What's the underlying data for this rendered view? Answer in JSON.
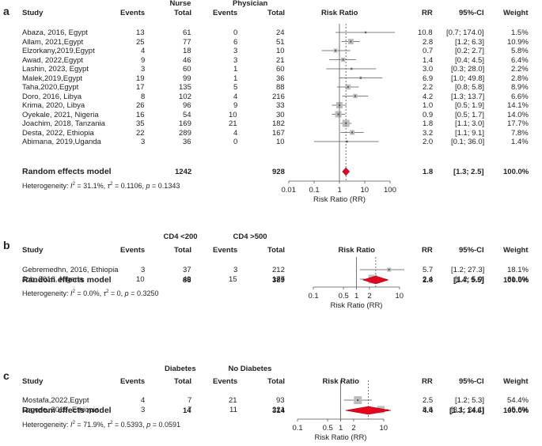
{
  "chart_data": [
    {
      "type": "forest",
      "panel": "a",
      "columns": {
        "study": "Study",
        "group1": "Nurse",
        "group2": "Physician",
        "events": "Events",
        "total": "Total",
        "plot": "Risk Ratio",
        "rr": "RR",
        "ci": "95%-CI",
        "weight": "Weight"
      },
      "studies": [
        {
          "name": "Abaza, 2016, Egypt",
          "e1": "13",
          "t1": "61",
          "e2": "0",
          "t2": "24",
          "rr_text": "10.8",
          "ci_text": "[0.7; 174.0]",
          "w_text": "1.5%",
          "rr": 10.8,
          "lo": 0.7,
          "hi": 174.0,
          "w": 1.5
        },
        {
          "name": "Allam, 2021,Egypt",
          "e1": "25",
          "t1": "77",
          "e2": "6",
          "t2": "51",
          "rr_text": "2.8",
          "ci_text": "[1.2;   6.3]",
          "w_text": "10.9%",
          "rr": 2.8,
          "lo": 1.2,
          "hi": 6.3,
          "w": 10.9
        },
        {
          "name": "Elzorkany,2019,Egypt",
          "e1": "4",
          "t1": "18",
          "e2": "3",
          "t2": "10",
          "rr_text": "0.7",
          "ci_text": "[0.2;   2.7]",
          "w_text": "5.8%",
          "rr": 0.7,
          "lo": 0.2,
          "hi": 2.7,
          "w": 5.8
        },
        {
          "name": "Awad, 2022,Egypt",
          "e1": "9",
          "t1": "46",
          "e2": "3",
          "t2": "21",
          "rr_text": "1.4",
          "ci_text": "[0.4;   4.5]",
          "w_text": "6.4%",
          "rr": 1.4,
          "lo": 0.4,
          "hi": 4.5,
          "w": 6.4
        },
        {
          "name": "Lashin, 2023, Egypt",
          "e1": "3",
          "t1": "60",
          "e2": "1",
          "t2": "60",
          "rr_text": "3.0",
          "ci_text": "[0.3;  28.0]",
          "w_text": "2.2%",
          "rr": 3.0,
          "lo": 0.3,
          "hi": 28.0,
          "w": 2.2
        },
        {
          "name": "Malek,2019,Egypt",
          "e1": "19",
          "t1": "99",
          "e2": "1",
          "t2": "36",
          "rr_text": "6.9",
          "ci_text": "[1.0;  49.8]",
          "w_text": "2.8%",
          "rr": 6.9,
          "lo": 1.0,
          "hi": 49.8,
          "w": 2.8
        },
        {
          "name": "Taha,2020,Egypt",
          "e1": "17",
          "t1": "135",
          "e2": "5",
          "t2": "88",
          "rr_text": "2.2",
          "ci_text": "[0.8;   5.8]",
          "w_text": "8.9%",
          "rr": 2.2,
          "lo": 0.8,
          "hi": 5.8,
          "w": 8.9
        },
        {
          "name": "Doro, 2016, Libya",
          "e1": "8",
          "t1": "102",
          "e2": "4",
          "t2": "216",
          "rr_text": "4.2",
          "ci_text": "[1.3;  13.7]",
          "w_text": "6.6%",
          "rr": 4.2,
          "lo": 1.3,
          "hi": 13.7,
          "w": 6.6
        },
        {
          "name": "Krima, 2020, Libya",
          "e1": "26",
          "t1": "96",
          "e2": "9",
          "t2": "33",
          "rr_text": "1.0",
          "ci_text": "[0.5;   1.9]",
          "w_text": "14.1%",
          "rr": 1.0,
          "lo": 0.5,
          "hi": 1.9,
          "w": 14.1
        },
        {
          "name": "Oyekale, 2021, Nigeria",
          "e1": "16",
          "t1": "54",
          "e2": "10",
          "t2": "30",
          "rr_text": "0.9",
          "ci_text": "[0.5;   1.7]",
          "w_text": "14.0%",
          "rr": 0.9,
          "lo": 0.5,
          "hi": 1.7,
          "w": 14.0
        },
        {
          "name": "Joachim, 2018, Tanzania",
          "e1": "35",
          "t1": "169",
          "e2": "21",
          "t2": "182",
          "rr_text": "1.8",
          "ci_text": "[1.1;   3.0]",
          "w_text": "17.7%",
          "rr": 1.8,
          "lo": 1.1,
          "hi": 3.0,
          "w": 17.7
        },
        {
          "name": "Desta, 2022, Ethiopia",
          "e1": "22",
          "t1": "289",
          "e2": "4",
          "t2": "167",
          "rr_text": "3.2",
          "ci_text": "[1.1;   9.1]",
          "w_text": "7.8%",
          "rr": 3.2,
          "lo": 1.1,
          "hi": 9.1,
          "w": 7.8
        },
        {
          "name": "Abimana, 2019,Uganda",
          "e1": "3",
          "t1": "36",
          "e2": "0",
          "t2": "10",
          "rr_text": "2.0",
          "ci_text": "[0.1;  36.0]",
          "w_text": "1.4%",
          "rr": 2.0,
          "lo": 0.1,
          "hi": 36.0,
          "w": 1.4
        }
      ],
      "pooled": {
        "label": "Random effects model",
        "t1": "1242",
        "t2": "928",
        "rr_text": "1.8",
        "ci_text": "[1.3;   2.5]",
        "w_text": "100.0%",
        "rr": 1.8,
        "lo": 1.3,
        "hi": 2.5
      },
      "heterogeneity": {
        "prefix": "Heterogeneity: ",
        "i2": "I",
        "i2_rest": " = 31.1%, ",
        "tau": "τ",
        "tau_rest": " = 0.1106, ",
        "p": "p",
        "p_rest": " = 0.1343"
      },
      "axis": {
        "ticks": [
          0.01,
          0.1,
          1,
          10,
          100
        ],
        "tick_labels": [
          "0.01",
          "0.1",
          "1",
          "10",
          "100"
        ],
        "xlabel": "Risk Ratio (RR)",
        "log": true,
        "range": [
          0.01,
          100
        ]
      }
    },
    {
      "type": "forest",
      "panel": "b",
      "columns": {
        "study": "Study",
        "group1": "CD4 <200",
        "group2": "CD4 >500",
        "events": "Events",
        "total": "Total",
        "plot": "Risk Ratio",
        "rr": "RR",
        "ci": "95%-CI",
        "weight": "Weight"
      },
      "studies": [
        {
          "name": "Gebremedhn, 2016, Ethiopia",
          "e1": "3",
          "t1": "37",
          "e2": "3",
          "t2": "212",
          "rr_text": "5.7",
          "ci_text": "[1.2; 27.3]",
          "w_text": "18.1%",
          "rr": 5.7,
          "lo": 1.2,
          "hi": 27.3,
          "w": 18.1
        },
        {
          "name": "Job, 2018, Nigeria",
          "e1": "10",
          "t1": "49",
          "e2": "15",
          "t2": "177",
          "rr_text": "2.4",
          "ci_text": "[1.2;  5.0]",
          "w_text": "81.9%",
          "rr": 2.4,
          "lo": 1.2,
          "hi": 5.0,
          "w": 81.9
        }
      ],
      "pooled": {
        "label": "Random effects model",
        "t1": "86",
        "t2": "389",
        "rr_text": "2.8",
        "ci_text": "[1.4;  5.5]",
        "w_text": "100.0%",
        "rr": 2.8,
        "lo": 1.4,
        "hi": 5.5
      },
      "heterogeneity": {
        "prefix": "Heterogeneity: ",
        "i2": "I",
        "i2_rest": " = 0.0%, ",
        "tau": "τ",
        "tau_rest": " = 0, ",
        "p": "p",
        "p_rest": " = 0.3250"
      },
      "axis": {
        "ticks": [
          0.1,
          0.5,
          1,
          2,
          10
        ],
        "tick_labels": [
          "0.1",
          "0.5",
          "1",
          "2",
          "10"
        ],
        "xlabel": "Risk Ratio (RR)",
        "log": true,
        "range": [
          0.1,
          10
        ]
      }
    },
    {
      "type": "forest",
      "panel": "c",
      "columns": {
        "study": "Study",
        "group1": "Diabetes",
        "group2": "No Diabetes",
        "events": "Events",
        "total": "Total",
        "plot": "Risk Ratio",
        "rr": "RR",
        "ci": "95%-CI",
        "weight": "Weight"
      },
      "studies": [
        {
          "name": "Mostafa,2022,Egypt",
          "e1": "4",
          "t1": "7",
          "e2": "21",
          "t2": "93",
          "rr_text": "2.5",
          "ci_text": "[1.2;  5.3]",
          "w_text": "54.4%",
          "rr": 2.5,
          "lo": 1.2,
          "hi": 5.3,
          "w": 54.4
        },
        {
          "name": "Legese, 2018, Ethiopia",
          "e1": "3",
          "t1": "7",
          "e2": "11",
          "t2": "221",
          "rr_text": "8.6",
          "ci_text": "[3.1; 24.1]",
          "w_text": "45.6%",
          "rr": 8.6,
          "lo": 3.1,
          "hi": 24.1,
          "w": 45.6
        }
      ],
      "pooled": {
        "label": "Random effects model",
        "t1": "14",
        "t2": "314",
        "rr_text": "4.4",
        "ci_text": "[1.3; 14.6]",
        "w_text": "100.0%",
        "rr": 4.4,
        "lo": 1.3,
        "hi": 14.6
      },
      "heterogeneity": {
        "prefix": "Heterogeneity: ",
        "i2": "I",
        "i2_rest": " = 71.9%, ",
        "tau": "τ",
        "tau_rest": " = 0.5393, ",
        "p": "p",
        "p_rest": " = 0.0591"
      },
      "axis": {
        "ticks": [
          0.1,
          0.5,
          1,
          2,
          10
        ],
        "tick_labels": [
          "0.1",
          "0.5",
          "1",
          "2",
          "10"
        ],
        "xlabel": "Risk Ratio (RR)",
        "log": true,
        "range": [
          0.1,
          10
        ]
      }
    }
  ],
  "colors": {
    "square": "#bdbdbd",
    "diamond": "#e8001c",
    "line": "#555555",
    "text": "#222222"
  }
}
